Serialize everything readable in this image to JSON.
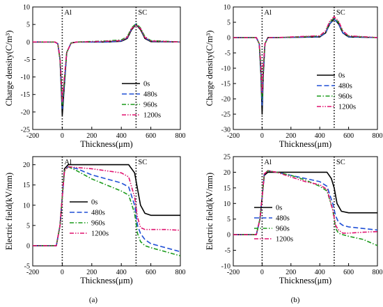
{
  "chart_data": [
    {
      "id": "a-top",
      "type": "line",
      "xlabel": "Thickness(μm)",
      "ylabel": "Charge density(C/m³)",
      "xlim": [
        -200,
        800
      ],
      "ylim": [
        -25,
        10
      ],
      "xticks": [
        -200,
        0,
        200,
        400,
        600,
        800
      ],
      "yticks": [
        -25,
        -20,
        -15,
        -10,
        -5,
        0,
        5,
        10
      ],
      "vlines": [
        0,
        500
      ],
      "annotations": [
        {
          "text": "Al",
          "x": 0
        },
        {
          "text": "SC",
          "x": 500
        }
      ],
      "legend": "bottom-right",
      "series": [
        {
          "name": "0s",
          "color": "#000000",
          "dash": "solid",
          "x": [
            -200,
            -50,
            -30,
            -15,
            -5,
            0,
            10,
            30,
            60,
            100,
            300,
            400,
            440,
            470,
            500,
            530,
            560,
            600,
            800
          ],
          "y": [
            0,
            0,
            -0.5,
            -5,
            -15,
            -21,
            -15,
            -3,
            -0.3,
            0,
            0,
            0.2,
            1,
            3.5,
            5,
            3.5,
            1,
            0.1,
            0
          ]
        },
        {
          "name": "480s",
          "color": "#1f4fd6",
          "dash": "long",
          "x": [
            -200,
            -50,
            -30,
            -15,
            -5,
            0,
            10,
            30,
            60,
            100,
            300,
            400,
            440,
            470,
            500,
            530,
            560,
            600,
            800
          ],
          "y": [
            0,
            0,
            -0.5,
            -5,
            -14,
            -19,
            -14,
            -3,
            -0.3,
            0,
            0,
            0.3,
            1.2,
            3.8,
            5.2,
            3.8,
            1.2,
            0.2,
            0
          ]
        },
        {
          "name": "960s",
          "color": "#1a9a1a",
          "dash": "dashdot",
          "x": [
            -200,
            -50,
            -30,
            -15,
            -5,
            0,
            10,
            30,
            60,
            100,
            300,
            400,
            440,
            470,
            500,
            530,
            560,
            600,
            800
          ],
          "y": [
            0,
            0,
            -0.5,
            -5,
            -13,
            -18,
            -13,
            -3,
            -0.3,
            0,
            0.3,
            0.6,
            1.5,
            4,
            5.3,
            4,
            1.5,
            0.4,
            0
          ]
        },
        {
          "name": "1200s",
          "color": "#e0106e",
          "dash": "dashdotdot",
          "x": [
            -200,
            -50,
            -30,
            -15,
            -5,
            0,
            10,
            30,
            60,
            100,
            300,
            400,
            440,
            470,
            500,
            530,
            560,
            600,
            800
          ],
          "y": [
            0,
            0,
            -0.5,
            -4.5,
            -12,
            -17,
            -12,
            -3,
            -0.3,
            0,
            0.2,
            0.4,
            1.3,
            3.8,
            4.9,
            3.8,
            1.3,
            0.3,
            0
          ]
        }
      ]
    },
    {
      "id": "b-top",
      "type": "line",
      "xlabel": "Thickness(μm)",
      "ylabel": "Charge density(C/m³)",
      "xlim": [
        -200,
        800
      ],
      "ylim": [
        -30,
        10
      ],
      "xticks": [
        -200,
        0,
        200,
        400,
        600,
        800
      ],
      "yticks": [
        -30,
        -25,
        -20,
        -15,
        -10,
        -5,
        0,
        5,
        10
      ],
      "vlines": [
        0,
        500
      ],
      "annotations": [
        {
          "text": "Al",
          "x": 0
        },
        {
          "text": "SC",
          "x": 500
        }
      ],
      "legend": "bottom-right",
      "series": [
        {
          "name": "0s",
          "color": "#000000",
          "dash": "solid",
          "x": [
            -200,
            -40,
            -20,
            -8,
            0,
            8,
            20,
            40,
            100,
            400,
            440,
            470,
            500,
            530,
            560,
            600,
            800
          ],
          "y": [
            0,
            0,
            -2,
            -12,
            -25,
            -12,
            -2,
            0,
            0,
            0.2,
            1.5,
            4.5,
            6,
            4.5,
            1.5,
            0.2,
            0
          ]
        },
        {
          "name": "480s",
          "color": "#1f4fd6",
          "dash": "long",
          "x": [
            -200,
            -40,
            -20,
            -8,
            0,
            8,
            20,
            40,
            100,
            400,
            440,
            470,
            500,
            530,
            560,
            600,
            800
          ],
          "y": [
            0,
            0,
            -2,
            -11,
            -22,
            -11,
            -2,
            0,
            0,
            0.3,
            1.6,
            4.6,
            6,
            4.6,
            1.6,
            0.3,
            0
          ]
        },
        {
          "name": "960s",
          "color": "#1a9a1a",
          "dash": "dashdot",
          "x": [
            -200,
            -40,
            -20,
            -8,
            0,
            8,
            20,
            40,
            100,
            400,
            440,
            470,
            500,
            530,
            560,
            600,
            800
          ],
          "y": [
            0,
            0,
            -2,
            -10,
            -20,
            -10,
            -2,
            0,
            0,
            0.5,
            2,
            5,
            6.5,
            5,
            2,
            0.5,
            0
          ]
        },
        {
          "name": "1200s",
          "color": "#e0106e",
          "dash": "dashdotdot",
          "x": [
            -200,
            -40,
            -20,
            -8,
            0,
            8,
            20,
            40,
            100,
            400,
            440,
            470,
            500,
            530,
            560,
            600,
            800
          ],
          "y": [
            0,
            0,
            -2,
            -9,
            -18,
            -9,
            -2,
            0,
            0,
            0.6,
            2.2,
            5.4,
            6.8,
            5.4,
            2.2,
            0.6,
            0
          ]
        }
      ]
    },
    {
      "id": "a-bottom",
      "type": "line",
      "xlabel": "Thickness(μm)",
      "ylabel": "Electric field(kV/mm)",
      "xlim": [
        -200,
        800
      ],
      "ylim": [
        -5,
        22
      ],
      "xticks": [
        -200,
        0,
        200,
        400,
        600,
        800
      ],
      "yticks": [
        -5,
        0,
        5,
        10,
        15,
        20
      ],
      "vlines": [
        0,
        500
      ],
      "annotations": [
        {
          "text": "Al",
          "x": 0
        },
        {
          "text": "SC",
          "x": 500
        }
      ],
      "legend": "center-right",
      "series": [
        {
          "name": "0s",
          "color": "#000000",
          "dash": "solid",
          "x": [
            -200,
            -40,
            -15,
            0,
            15,
            40,
            100,
            300,
            450,
            490,
            510,
            530,
            560,
            600,
            800
          ],
          "y": [
            0,
            0,
            5,
            12,
            19,
            20,
            20,
            20,
            20,
            18,
            14,
            10,
            8,
            7.5,
            7.5
          ]
        },
        {
          "name": "480s",
          "color": "#1f4fd6",
          "dash": "long",
          "x": [
            -200,
            -40,
            -15,
            0,
            15,
            40,
            100,
            200,
            300,
            400,
            450,
            490,
            510,
            530,
            560,
            600,
            700,
            800
          ],
          "y": [
            0,
            0,
            5,
            12,
            18.5,
            19.5,
            19,
            17.5,
            16.5,
            15.5,
            14.5,
            10,
            5,
            3,
            1.5,
            0.5,
            -0.5,
            -1.5
          ]
        },
        {
          "name": "960s",
          "color": "#1a9a1a",
          "dash": "dashdot",
          "x": [
            -200,
            -40,
            -15,
            0,
            15,
            40,
            100,
            200,
            300,
            400,
            450,
            490,
            510,
            530,
            560,
            600,
            700,
            800
          ],
          "y": [
            0,
            0,
            5,
            12,
            18.5,
            19.5,
            18.5,
            16.5,
            15,
            13.5,
            12.5,
            8,
            3,
            1,
            0,
            -0.5,
            -1.5,
            -2.5
          ]
        },
        {
          "name": "1200s",
          "color": "#e0106e",
          "dash": "dashdotdot",
          "x": [
            -200,
            -40,
            -15,
            0,
            15,
            40,
            100,
            200,
            300,
            400,
            450,
            490,
            510,
            530,
            560,
            600,
            700,
            800
          ],
          "y": [
            0,
            0,
            5,
            12,
            18.5,
            19.5,
            19.3,
            19,
            18.5,
            18,
            17,
            12,
            7,
            4.5,
            4,
            4,
            4,
            3.8
          ]
        }
      ]
    },
    {
      "id": "b-bottom",
      "type": "line",
      "xlabel": "Thickness(μm)",
      "ylabel": "Electric field(kV/mm)",
      "xlim": [
        -200,
        800
      ],
      "ylim": [
        -10,
        25
      ],
      "xticks": [
        -200,
        0,
        200,
        400,
        600,
        800
      ],
      "yticks": [
        -10,
        -5,
        0,
        5,
        10,
        15,
        20,
        25
      ],
      "vlines": [
        0,
        500
      ],
      "annotations": [
        {
          "text": "Al",
          "x": 0
        },
        {
          "text": "SC",
          "x": 500
        }
      ],
      "legend": "center-right",
      "series": [
        {
          "name": "0s",
          "color": "#000000",
          "dash": "solid",
          "x": [
            -200,
            -40,
            -15,
            0,
            15,
            40,
            100,
            300,
            450,
            480,
            500,
            520,
            550,
            600,
            800
          ],
          "y": [
            0,
            0,
            5,
            12,
            19,
            20,
            20,
            20,
            20,
            18,
            15,
            10,
            7.5,
            7,
            7
          ]
        },
        {
          "name": "480s",
          "color": "#1f4fd6",
          "dash": "long",
          "x": [
            -200,
            -40,
            -15,
            0,
            15,
            40,
            100,
            200,
            300,
            400,
            450,
            490,
            510,
            530,
            560,
            600,
            700,
            800
          ],
          "y": [
            0,
            0,
            5,
            12,
            19.5,
            20.5,
            20,
            19,
            18,
            17,
            15.5,
            10,
            6,
            4,
            3,
            2.5,
            2,
            1.5
          ]
        },
        {
          "name": "960s",
          "color": "#1a9a1a",
          "dash": "dashdot",
          "x": [
            -200,
            -40,
            -15,
            0,
            15,
            40,
            100,
            200,
            300,
            400,
            450,
            490,
            510,
            530,
            560,
            600,
            700,
            800
          ],
          "y": [
            0,
            0,
            5,
            12,
            19.5,
            20.5,
            20,
            19,
            17.5,
            15.5,
            14,
            8,
            2,
            0.5,
            0,
            -0.5,
            -1.5,
            -3.5
          ]
        },
        {
          "name": "1200s",
          "color": "#e0106e",
          "dash": "dashdotdot",
          "x": [
            -200,
            -40,
            -15,
            0,
            15,
            40,
            100,
            200,
            300,
            400,
            450,
            490,
            510,
            530,
            560,
            600,
            700,
            800
          ],
          "y": [
            0,
            0,
            5,
            12,
            19.5,
            20.5,
            20,
            18.5,
            17,
            16,
            14.5,
            8,
            3,
            1.5,
            0.5,
            0.5,
            0.8,
            1
          ]
        }
      ]
    }
  ],
  "captions": [
    "(a)",
    "(b)"
  ]
}
